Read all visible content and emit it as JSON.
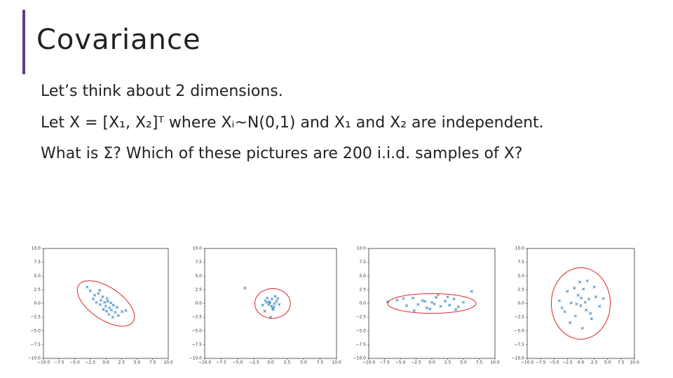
{
  "title": "Covariance",
  "bullets": [
    "Let’s think about 2 dimensions.",
    "Let X = [X₁, X₂]ᵀ where Xᵢ~N(0,1) and X₁ and X₂ are independent.",
    "What is Σ? Which of these pictures are 200 i.i.d. samples of X?"
  ],
  "chart_data": [
    {
      "type": "scatter",
      "color": "#1f77b4",
      "ellipse_color": "#d62728",
      "x": [
        -2.5,
        -1.8,
        -1.2,
        -0.8,
        -0.5,
        -0.2,
        0,
        0.3,
        0.6,
        0.9,
        1.2,
        1.5,
        2,
        2.6,
        -3,
        -1.5,
        -0.9,
        0.2,
        0.8,
        1.8,
        -2,
        -0.4,
        0.5,
        1.1,
        3.2,
        -1,
        0.1
      ],
      "y": [
        2.3,
        1.5,
        1.8,
        0.6,
        1.2,
        0.2,
        -0.5,
        0.4,
        -0.8,
        -1.2,
        -0.3,
        -1.6,
        -2.2,
        -1.5,
        3,
        0.2,
        -0.2,
        0.9,
        0.1,
        -0.7,
        0.8,
        -1.1,
        -2,
        -2.5,
        -1.3,
        2.4,
        -1.4
      ],
      "ellipse": {
        "cx": 0,
        "cy": 0,
        "rx": 5.5,
        "ry": 2.8,
        "angle": -40
      },
      "xlim": [
        -10,
        10
      ],
      "ylim": [
        -10,
        10
      ],
      "xticks": [
        {
          "value": -10,
          "label": "−10.0"
        },
        {
          "value": -7.5,
          "label": "−7.5"
        },
        {
          "value": -5,
          "label": "−5.0"
        },
        {
          "value": -2.5,
          "label": "−2.5"
        },
        {
          "value": 0,
          "label": "0.0"
        },
        {
          "value": 2.5,
          "label": "2.5"
        },
        {
          "value": 5,
          "label": "5.0"
        },
        {
          "value": 7.5,
          "label": "7.5"
        },
        {
          "value": 10,
          "label": "10.0"
        }
      ],
      "yticks": [
        {
          "value": -10,
          "label": "−10.0"
        },
        {
          "value": -7.5,
          "label": "−7.5"
        },
        {
          "value": -5,
          "label": "−5.0"
        },
        {
          "value": -2.5,
          "label": "−2.5"
        },
        {
          "value": 0,
          "label": "0.0"
        },
        {
          "value": 2.5,
          "label": "2.5"
        },
        {
          "value": 5,
          "label": "5.0"
        },
        {
          "value": 7.5,
          "label": "7.5"
        },
        {
          "value": 10,
          "label": "10.0"
        }
      ]
    },
    {
      "type": "scatter",
      "color": "#1f77b4",
      "ellipse_color": "#d62728",
      "x": [
        -0.8,
        -0.3,
        0.2,
        0.5,
        -0.1,
        0.9,
        -1.2,
        0.4,
        -0.5,
        0.1,
        1.3,
        -0.9,
        0.7,
        -0.2,
        0.3,
        -3.9,
        -0.6,
        1.1,
        0,
        0.6
      ],
      "y": [
        0.5,
        -0.2,
        0.8,
        -0.6,
        0.1,
        0.4,
        -0.3,
        -1.1,
        1,
        -0.5,
        -0.2,
        -1.4,
        1.3,
        0.3,
        -0.9,
        2.8,
        0.2,
        0.9,
        -2.5,
        0
      ],
      "ellipse": {
        "cx": 0.3,
        "cy": 0,
        "rx": 2.7,
        "ry": 2.7,
        "angle": 0
      },
      "xlim": [
        -10,
        10
      ],
      "ylim": [
        -10,
        10
      ],
      "xticks": [
        {
          "value": -10,
          "label": "−10.0"
        },
        {
          "value": -7.5,
          "label": "−7.5"
        },
        {
          "value": -5,
          "label": "−5.0"
        },
        {
          "value": -2.5,
          "label": "−2.5"
        },
        {
          "value": 0,
          "label": "0.0"
        },
        {
          "value": 2.5,
          "label": "2.5"
        },
        {
          "value": 5,
          "label": "5.0"
        },
        {
          "value": 7.5,
          "label": "7.5"
        },
        {
          "value": 10,
          "label": "10.0"
        }
      ],
      "yticks": [
        {
          "value": -10,
          "label": "−10.0"
        },
        {
          "value": -7.5,
          "label": "−7.5"
        },
        {
          "value": -5,
          "label": "−5.0"
        },
        {
          "value": -2.5,
          "label": "−2.5"
        },
        {
          "value": 0,
          "label": "0.0"
        },
        {
          "value": 2.5,
          "label": "2.5"
        },
        {
          "value": 5,
          "label": "5.0"
        },
        {
          "value": 7.5,
          "label": "7.5"
        },
        {
          "value": 10,
          "label": "10.0"
        }
      ]
    },
    {
      "type": "scatter",
      "color": "#1f77b4",
      "ellipse_color": "#d62728",
      "x": [
        -7,
        -5.5,
        -4,
        -3,
        -2.2,
        -1.5,
        -0.8,
        0,
        0.7,
        1.4,
        2.1,
        2.8,
        3.5,
        4.2,
        5,
        6.3,
        -2.8,
        -0.3,
        1,
        2.5,
        -4.5,
        3.8,
        0.4,
        -1.1
      ],
      "y": [
        0.3,
        0.6,
        -0.4,
        1,
        -0.2,
        0.5,
        -0.8,
        0.2,
        1.1,
        -0.5,
        0.4,
        -0.3,
        0.8,
        -0.6,
        0.2,
        2.2,
        -1.3,
        -1,
        1.6,
        1.2,
        0.9,
        -1.1,
        -0.1,
        0.4
      ],
      "ellipse": {
        "cx": 0,
        "cy": 0,
        "rx": 7,
        "ry": 1.8,
        "angle": 0
      },
      "xlim": [
        -10,
        10
      ],
      "ylim": [
        -10,
        10
      ],
      "xticks": [
        {
          "value": -10,
          "label": "−10.0"
        },
        {
          "value": -7.5,
          "label": "−7.5"
        },
        {
          "value": -5,
          "label": "−5.0"
        },
        {
          "value": -2.5,
          "label": "−2.5"
        },
        {
          "value": 0,
          "label": "0.0"
        },
        {
          "value": 2.5,
          "label": "2.5"
        },
        {
          "value": 5,
          "label": "5.0"
        },
        {
          "value": 7.5,
          "label": "7.5"
        },
        {
          "value": 10,
          "label": "10.0"
        }
      ],
      "yticks": [
        {
          "value": -10,
          "label": "−10.0"
        },
        {
          "value": -7.5,
          "label": "−7.5"
        },
        {
          "value": -5,
          "label": "−5.0"
        },
        {
          "value": -2.5,
          "label": "−2.5"
        },
        {
          "value": 0,
          "label": "0.0"
        },
        {
          "value": 2.5,
          "label": "2.5"
        },
        {
          "value": 5,
          "label": "5.0"
        },
        {
          "value": 7.5,
          "label": "7.5"
        },
        {
          "value": 10,
          "label": "10.0"
        }
      ]
    },
    {
      "type": "scatter",
      "color": "#1f77b4",
      "ellipse_color": "#d62728",
      "x": [
        -4,
        -3,
        -2.5,
        -1.8,
        -1,
        -0.5,
        0,
        0.5,
        1,
        1.5,
        2,
        2.8,
        3.5,
        4.2,
        -2,
        -0.2,
        0.8,
        1.8,
        -1.2,
        0.3,
        2.5,
        -3.5,
        1.2,
        -0.8,
        0.1
      ],
      "y": [
        0.5,
        -1.5,
        2.2,
        0.1,
        -2.3,
        1.5,
        -0.4,
        2.6,
        -1.2,
        0.8,
        -2.8,
        1.2,
        -0.5,
        0.9,
        -3.5,
        3.9,
        0.2,
        -1.8,
        2.8,
        -4.5,
        3,
        -0.8,
        4.1,
        -0.1,
        1
      ],
      "ellipse": {
        "cx": 0,
        "cy": 0,
        "rx": 5.5,
        "ry": 6.5,
        "angle": 0
      },
      "xlim": [
        -10,
        10
      ],
      "ylim": [
        -10,
        10
      ],
      "xticks": [
        {
          "value": -10,
          "label": "−10.0"
        },
        {
          "value": -7.5,
          "label": "−7.5"
        },
        {
          "value": -5,
          "label": "−5.0"
        },
        {
          "value": -2.5,
          "label": "−2.5"
        },
        {
          "value": 0,
          "label": "0.0"
        },
        {
          "value": 2.5,
          "label": "2.5"
        },
        {
          "value": 5,
          "label": "5.0"
        },
        {
          "value": 7.5,
          "label": "7.5"
        },
        {
          "value": 10,
          "label": "10.0"
        }
      ],
      "yticks": [
        {
          "value": -10,
          "label": "−10.0"
        },
        {
          "value": -7.5,
          "label": "−7.5"
        },
        {
          "value": -5,
          "label": "−5.0"
        },
        {
          "value": -2.5,
          "label": "−2.5"
        },
        {
          "value": 0,
          "label": "0.0"
        },
        {
          "value": 2.5,
          "label": "2.5"
        },
        {
          "value": 5,
          "label": "5.0"
        },
        {
          "value": 7.5,
          "label": "7.5"
        },
        {
          "value": 10,
          "label": "10.0"
        }
      ]
    }
  ]
}
